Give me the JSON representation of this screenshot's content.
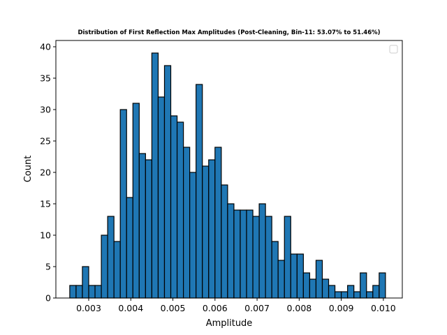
{
  "chart_data": {
    "type": "bar",
    "title": "Distribution of First Reflection Max Amplitudes (Post-Cleaning, Bin-11: 53.07% to 51.46%)",
    "xlabel": "Amplitude",
    "ylabel": "Count",
    "xlim": [
      0.00222,
      0.01045
    ],
    "ylim": [
      0,
      41
    ],
    "xticks": [
      0.003,
      0.004,
      0.005,
      0.006,
      0.007,
      0.008,
      0.009,
      0.01
    ],
    "xtick_labels": [
      "0.003",
      "0.004",
      "0.005",
      "0.006",
      "0.007",
      "0.008",
      "0.009",
      "0.010"
    ],
    "yticks": [
      0,
      5,
      10,
      15,
      20,
      25,
      30,
      35,
      40
    ],
    "ytick_labels": [
      "0",
      "5",
      "10",
      "15",
      "20",
      "25",
      "30",
      "35",
      "40"
    ],
    "bin_start": 0.00255,
    "bin_width": 0.00015,
    "counts": [
      2,
      2,
      5,
      2,
      2,
      10,
      13,
      9,
      30,
      16,
      31,
      23,
      22,
      39,
      32,
      37,
      29,
      28,
      24,
      20,
      34,
      21,
      22,
      24,
      18,
      15,
      14,
      14,
      14,
      13,
      15,
      13,
      9,
      6,
      13,
      7,
      7,
      4,
      3,
      6,
      3,
      2,
      1,
      1,
      2,
      1,
      4,
      1,
      2,
      4
    ],
    "bar_color": "#1f77b4",
    "edge_color": "#000000",
    "legend": {
      "placement": "top-right",
      "entries": []
    }
  }
}
